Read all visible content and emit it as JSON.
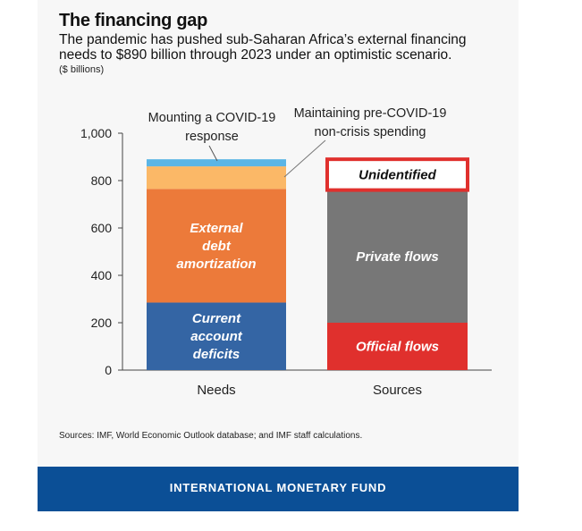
{
  "header": {
    "title": "The financing gap",
    "subtitle": "The pandemic has pushed sub-Saharan Africa’s external financing needs to $890 billion through 2023 under an optimistic scenario.",
    "units": "($ billions)"
  },
  "footer": {
    "source": "Sources: IMF, World Economic Outlook database; and IMF staff calculations.",
    "brand": "INTERNATIONAL MONETARY FUND"
  },
  "chart_data": {
    "type": "bar",
    "stacked": true,
    "categories": [
      "Needs",
      "Sources"
    ],
    "ylim": [
      0,
      1000
    ],
    "yticks": [
      "0",
      "200",
      "400",
      "600",
      "800",
      "1,000"
    ],
    "ytick_values": [
      0,
      200,
      400,
      600,
      800,
      1000
    ],
    "grid": false,
    "legend": "none",
    "series": [
      {
        "name": "Current account deficits",
        "bar": "Needs",
        "base": 0,
        "value": 285,
        "color": "#3465a4",
        "label_lines": [
          "Current",
          "account",
          "deficits"
        ]
      },
      {
        "name": "External debt amortization",
        "bar": "Needs",
        "base": 285,
        "value": 480,
        "color": "#ec7a3a",
        "label_lines": [
          "External",
          "debt",
          "amortization"
        ]
      },
      {
        "name": "Maintaining pre-COVID-19 non-crisis spending",
        "bar": "Needs",
        "base": 765,
        "value": 95,
        "color": "#fbb867",
        "label_lines": []
      },
      {
        "name": "Mounting a COVID-19 response",
        "bar": "Needs",
        "base": 860,
        "value": 30,
        "color": "#5bb5e6",
        "label_lines": []
      },
      {
        "name": "Official flows",
        "bar": "Sources",
        "base": 0,
        "value": 200,
        "color": "#e0302d",
        "label_lines": [
          "Official flows"
        ]
      },
      {
        "name": "Private flows",
        "bar": "Sources",
        "base": 200,
        "value": 560,
        "color": "#777777",
        "label_lines": [
          "Private flows"
        ]
      },
      {
        "name": "Unidentified",
        "bar": "Sources",
        "base": 760,
        "value": 130,
        "color": "#ffffff",
        "outline": "#e0302d",
        "label_lines": [
          "Unidentified"
        ]
      }
    ],
    "annotations": [
      {
        "text_lines": [
          "Mounting a COVID-19",
          "response"
        ]
      },
      {
        "text_lines": [
          "Maintaining pre-COVID-19",
          "non-crisis spending"
        ]
      }
    ]
  }
}
